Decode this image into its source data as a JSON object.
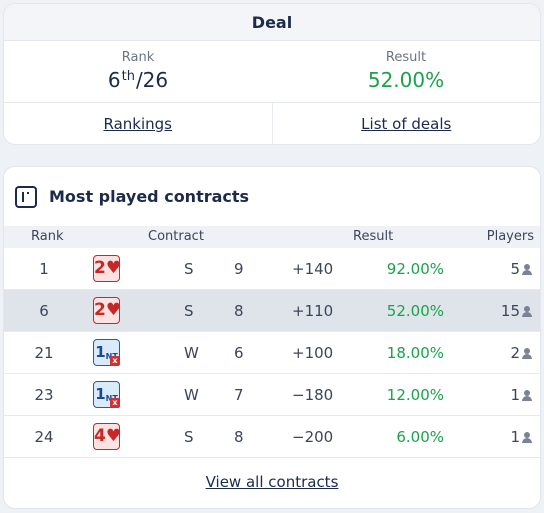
{
  "deal": {
    "title": "Deal",
    "rank_label": "Rank",
    "rank_number": "6",
    "rank_suffix": "th",
    "rank_total": "/26",
    "result_label": "Result",
    "result_value": "52.00%",
    "rankings_link": "Rankings",
    "deals_link": "List of deals"
  },
  "most_played": {
    "title": "Most played contracts",
    "columns": {
      "rank": "Rank",
      "contract": "Contract",
      "result": "Result",
      "players": "Players"
    },
    "rows": [
      {
        "rank": "1",
        "level": "2",
        "suit": "♥",
        "doubled": false,
        "declarer": "S",
        "tricks": "9",
        "score": "+140",
        "result": "92.00%",
        "players": "5"
      },
      {
        "rank": "6",
        "level": "2",
        "suit": "♥",
        "doubled": false,
        "declarer": "S",
        "tricks": "8",
        "score": "+110",
        "result": "52.00%",
        "players": "15"
      },
      {
        "rank": "21",
        "level": "1",
        "suit": "NT",
        "doubled": true,
        "declarer": "W",
        "tricks": "6",
        "score": "+100",
        "result": "18.00%",
        "players": "2"
      },
      {
        "rank": "23",
        "level": "1",
        "suit": "NT",
        "doubled": true,
        "declarer": "W",
        "tricks": "7",
        "score": "−180",
        "result": "12.00%",
        "players": "1"
      },
      {
        "rank": "24",
        "level": "4",
        "suit": "♥",
        "doubled": false,
        "declarer": "S",
        "tricks": "8",
        "score": "−200",
        "result": "6.00%",
        "players": "1"
      }
    ],
    "double_marker": "x",
    "view_all": "View all contracts"
  },
  "colors": {
    "accent_green": "#1aa34a",
    "heart_red": "#c62828",
    "nt_blue": "#1c5fb0",
    "text_navy": "#1c2b4a"
  },
  "icons": {
    "header": "contracts-icon",
    "players": "person-icon"
  }
}
